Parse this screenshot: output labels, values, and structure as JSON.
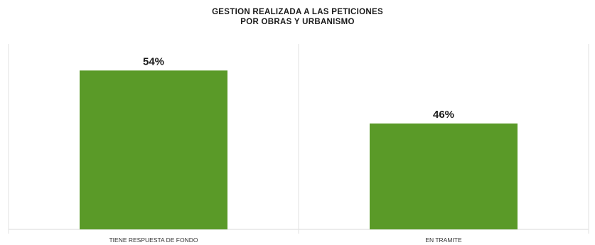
{
  "chart_data": {
    "type": "bar",
    "title_lines": [
      "GESTION REALIZADA A LAS PETICIONES",
      "POR OBRAS Y URBANISMO"
    ],
    "categories": [
      "TIENE RESPUESTA DE FONDO",
      "EN TRAMITE"
    ],
    "values": [
      54,
      46
    ],
    "data_labels": [
      "54%",
      "46%"
    ],
    "xlabel": "",
    "ylabel": "",
    "ylim": [
      30,
      58
    ],
    "grid": false,
    "legend": "none",
    "bar_color": "#5a9a28",
    "title_color": "#1a1a1a"
  }
}
